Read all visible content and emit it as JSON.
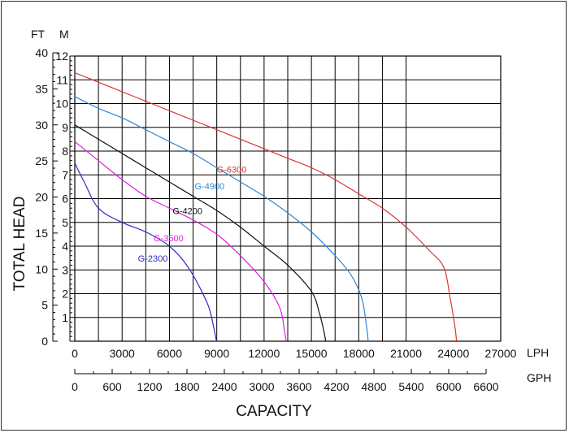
{
  "chart_data": {
    "type": "line",
    "title": "",
    "xlabel": "CAPACITY",
    "ylabel": "TOTAL HEAD",
    "x_units": [
      "LPH",
      "GPH"
    ],
    "y_units": [
      "FT",
      "M"
    ],
    "xlim_lph": [
      0,
      27000
    ],
    "x_ticks_lph": [
      "0",
      "3000",
      "6000",
      "9000",
      "12000",
      "15000",
      "18000",
      "21000",
      "24000",
      "27000"
    ],
    "x_ticks_gph": [
      "0",
      "600",
      "1200",
      "1800",
      "2400",
      "3000",
      "3600",
      "4200",
      "4800",
      "5400",
      "6000",
      "6600"
    ],
    "ylim_m": [
      0,
      12
    ],
    "y_ticks_m": [
      "1",
      "2",
      "3",
      "4",
      "5",
      "6",
      "7",
      "8",
      "9",
      "10",
      "11",
      "12"
    ],
    "y_ticks_ft": [
      "0",
      "5",
      "10",
      "15",
      "20",
      "25",
      "30",
      "35",
      "40"
    ],
    "grid": true,
    "series": [
      {
        "name": "G-2300",
        "color": "#2b2bc8",
        "x": [
          0,
          600,
          1500,
          3000,
          4500,
          6000,
          7200,
          8400,
          8800,
          8950,
          9000
        ],
        "y": [
          7.5,
          6.7,
          5.6,
          5.0,
          4.6,
          4.0,
          3.1,
          1.6,
          0.6,
          0.1,
          0
        ]
      },
      {
        "name": "G-3500",
        "color": "#e01ee0",
        "x": [
          0,
          1500,
          3000,
          4500,
          6000,
          7500,
          9000,
          10500,
          12000,
          13000,
          13300,
          13400
        ],
        "y": [
          8.4,
          7.6,
          6.8,
          6.1,
          5.6,
          5.1,
          4.5,
          3.6,
          2.5,
          1.4,
          0.4,
          0
        ]
      },
      {
        "name": "G-4200",
        "color": "#111111",
        "x": [
          0,
          1500,
          3000,
          4500,
          6000,
          7500,
          9000,
          10500,
          12000,
          13500,
          15000,
          15500,
          15800,
          15900
        ],
        "y": [
          9.1,
          8.5,
          7.9,
          7.3,
          6.7,
          6.1,
          5.5,
          4.8,
          4.0,
          3.2,
          2.1,
          1.2,
          0.4,
          0
        ]
      },
      {
        "name": "G-4900",
        "color": "#2f86d8",
        "x": [
          0,
          1500,
          3000,
          4500,
          6000,
          7500,
          9000,
          10500,
          12000,
          13500,
          15000,
          16500,
          17500,
          18200,
          18500,
          18600
        ],
        "y": [
          10.3,
          9.8,
          9.4,
          8.9,
          8.4,
          7.9,
          7.3,
          6.7,
          6.1,
          5.4,
          4.6,
          3.6,
          2.8,
          1.8,
          0.6,
          0
        ]
      },
      {
        "name": "G-6300",
        "color": "#e03232",
        "x": [
          0,
          1500,
          3000,
          4500,
          6000,
          7500,
          9000,
          10500,
          12000,
          13500,
          15000,
          16500,
          18000,
          19500,
          21000,
          22500,
          23400,
          23800,
          24100,
          24200
        ],
        "y": [
          11.3,
          10.9,
          10.5,
          10.1,
          9.7,
          9.3,
          8.9,
          8.5,
          8.1,
          7.7,
          7.3,
          6.8,
          6.2,
          5.6,
          4.8,
          3.8,
          3.1,
          1.8,
          0.6,
          0
        ]
      }
    ]
  }
}
